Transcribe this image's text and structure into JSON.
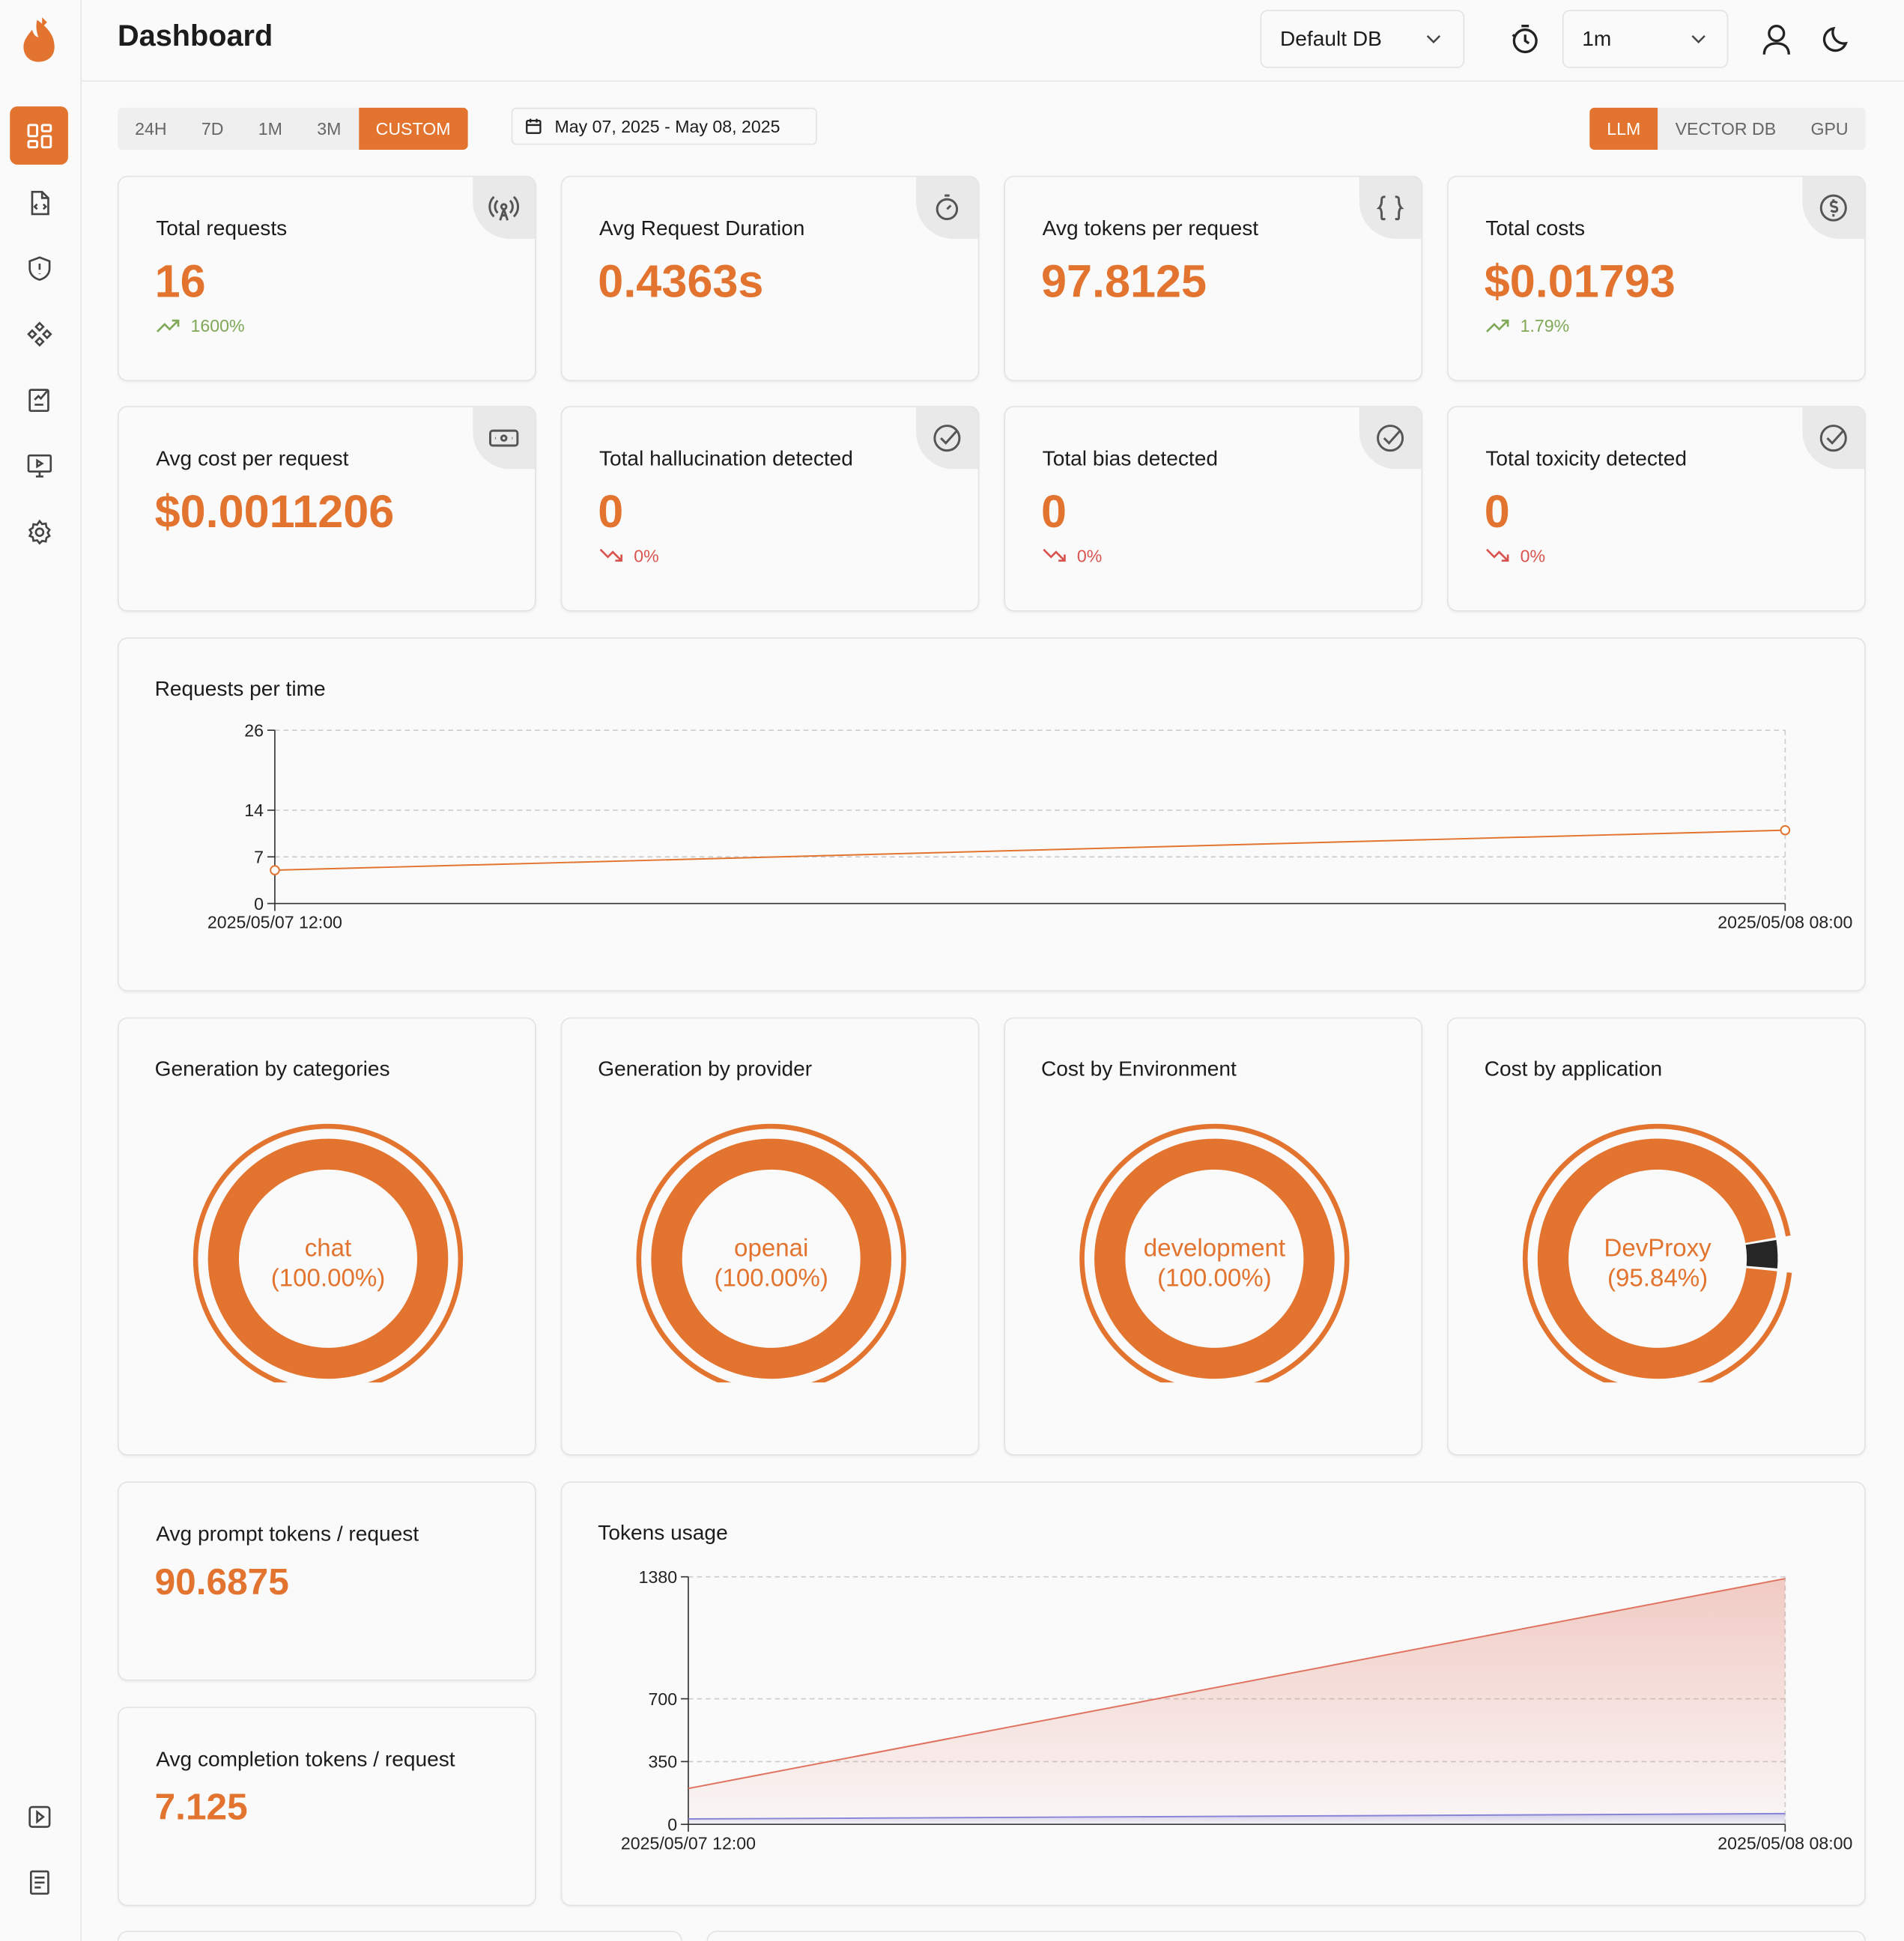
{
  "header": {
    "title": "Dashboard",
    "database": "Default DB",
    "refresh": "1m"
  },
  "filters": {
    "ranges": [
      "24H",
      "7D",
      "1M",
      "3M",
      "CUSTOM"
    ],
    "active_range": 4,
    "date_range": "May 07, 2025 - May 08, 2025",
    "modes": [
      "LLM",
      "VECTOR DB",
      "GPU"
    ],
    "active_mode": 0
  },
  "stats": [
    {
      "label": "Total requests",
      "value": "16",
      "change": "1600%",
      "trend": "up"
    },
    {
      "label": "Avg Request Duration",
      "value": "0.4363s"
    },
    {
      "label": "Avg tokens per request",
      "value": "97.8125"
    },
    {
      "label": "Total costs",
      "value": "$0.01793",
      "change": "1.79%",
      "trend": "up"
    },
    {
      "label": "Avg cost per request",
      "value": "$0.0011206"
    },
    {
      "label": "Total hallucination detected",
      "value": "0",
      "change": "0%",
      "trend": "down"
    },
    {
      "label": "Total bias detected",
      "value": "0",
      "change": "0%",
      "trend": "down"
    },
    {
      "label": "Total toxicity detected",
      "value": "0",
      "change": "0%",
      "trend": "down"
    }
  ],
  "token_stats": [
    {
      "label": "Avg prompt tokens / request",
      "value": "90.6875"
    },
    {
      "label": "Avg completion tokens / request",
      "value": "7.125"
    }
  ],
  "chart_data": [
    {
      "type": "line",
      "title": "Requests per time",
      "categories": [
        "2025/05/07 12:00",
        "2025/05/08 08:00"
      ],
      "values": [
        5,
        11
      ],
      "color": "#e2742f",
      "ylim": [
        0,
        26
      ],
      "yticks": [
        0,
        7,
        14,
        26
      ],
      "grid": true
    },
    {
      "type": "pie",
      "title": "Generation by categories",
      "categories": [
        "chat"
      ],
      "values": [
        100
      ],
      "value_labels": [
        "(100.00%)"
      ],
      "colors": [
        "#e2742f"
      ]
    },
    {
      "type": "pie",
      "title": "Generation by provider",
      "categories": [
        "openai"
      ],
      "values": [
        100
      ],
      "value_labels": [
        "(100.00%)"
      ],
      "colors": [
        "#e2742f"
      ]
    },
    {
      "type": "pie",
      "title": "Cost by Environment",
      "categories": [
        "development"
      ],
      "values": [
        100
      ],
      "value_labels": [
        "(100.00%)"
      ],
      "colors": [
        "#e2742f"
      ]
    },
    {
      "type": "pie",
      "title": "Cost by application",
      "categories": [
        "DevProxy",
        null
      ],
      "values": [
        95.84,
        4.16
      ],
      "value_labels": [
        "(95.84%)",
        null
      ],
      "colors": [
        "#e2742f",
        "#262626"
      ]
    },
    {
      "type": "area",
      "title": "Tokens usage",
      "categories": [
        "2025/05/07 12:00",
        "2025/05/08 08:00"
      ],
      "series": [
        {
          "color": "#e0735f",
          "values": [
            200,
            1370
          ]
        },
        {
          "color": "#8884d8",
          "values": [
            30,
            60
          ]
        }
      ],
      "ylim": [
        0,
        1380
      ],
      "yticks": [
        0,
        350,
        700,
        1380
      ],
      "grid": true
    }
  ]
}
